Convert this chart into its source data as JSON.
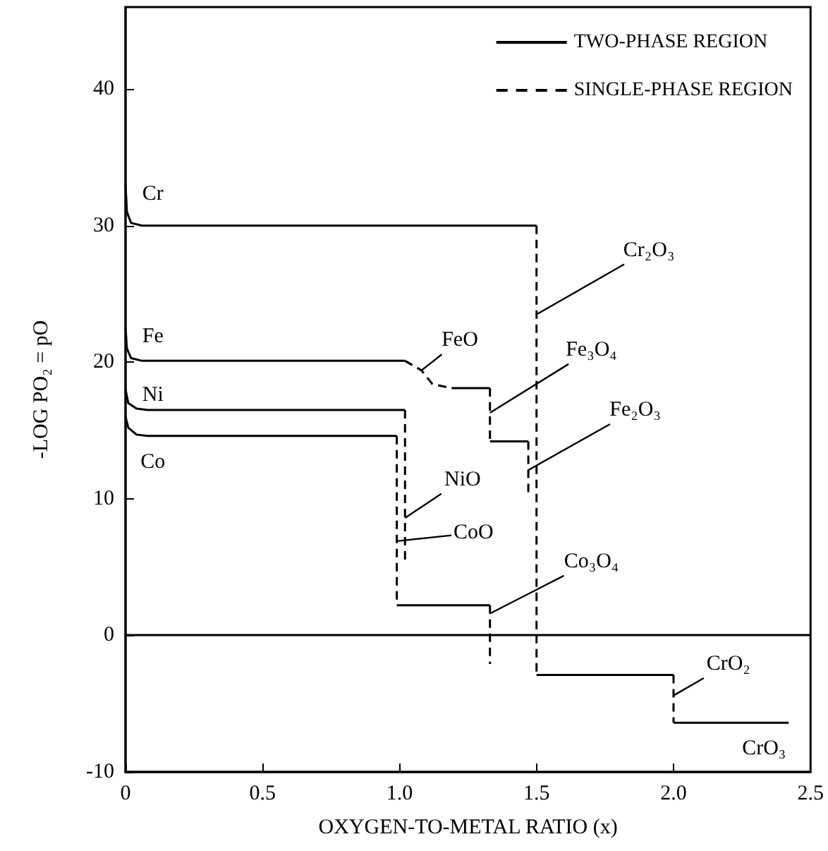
{
  "chart_data": {
    "type": "line",
    "xlabel": "OXYGEN-TO-METAL RATIO (x)",
    "ylabel": "-LOG PO₂ = pO",
    "xlim": [
      0,
      2.5
    ],
    "xticks": [
      0,
      0.5,
      {
        "value": 1,
        "label": "1.0"
      },
      1.5,
      {
        "value": 2,
        "label": "2.0"
      },
      2.5
    ],
    "ylim": [
      -10,
      46
    ],
    "yticks": [
      -10,
      0,
      10,
      20,
      30,
      40
    ],
    "grid": false,
    "legend": "top right",
    "marker": "none",
    "series": [
      {
        "name": "TWO-PHASE REGION",
        "color": "#000000",
        "line_style": "solid",
        "x": [
          0,
          0.005,
          0.02,
          0.06,
          1.5
        ],
        "values": [
          33,
          31,
          30.2,
          30,
          30
        ]
      },
      {
        "name": "SINGLE-PHASE REGION",
        "color": "#000000",
        "line_style": "dashed",
        "x": [
          1.5,
          1.5
        ],
        "values": [
          30,
          -2.9
        ]
      },
      {
        "color": "#000000",
        "line_style": "solid",
        "x": [
          1.5,
          2.0
        ],
        "values": [
          -2.9,
          -2.9
        ]
      },
      {
        "color": "#000000",
        "line_style": "dashed",
        "x": [
          2.0,
          2.0
        ],
        "values": [
          -2.9,
          -6.4
        ]
      },
      {
        "color": "#000000",
        "line_style": "solid",
        "x": [
          2.0,
          2.42
        ],
        "values": [
          -6.4,
          -6.4
        ]
      },
      {
        "color": "#000000",
        "line_style": "solid",
        "x": [
          0,
          0.005,
          0.02,
          0.06,
          1.02
        ],
        "values": [
          22.5,
          21,
          20.3,
          20.1,
          20.1
        ]
      },
      {
        "color": "#000000",
        "line_style": "dashed",
        "x": [
          1.02,
          1.08,
          1.12,
          1.19
        ],
        "values": [
          20.1,
          19.4,
          18.4,
          18.1
        ]
      },
      {
        "color": "#000000",
        "line_style": "solid",
        "x": [
          1.19,
          1.33
        ],
        "values": [
          18.1,
          18.1
        ]
      },
      {
        "color": "#000000",
        "line_style": "dashed",
        "x": [
          1.33,
          1.33
        ],
        "values": [
          18.1,
          14.2
        ]
      },
      {
        "color": "#000000",
        "line_style": "solid",
        "x": [
          1.33,
          1.47
        ],
        "values": [
          14.2,
          14.2
        ]
      },
      {
        "color": "#000000",
        "line_style": "dashed",
        "x": [
          1.47,
          1.47
        ],
        "values": [
          14.2,
          10.3
        ]
      },
      {
        "color": "#000000",
        "line_style": "solid",
        "x": [
          0,
          0.01,
          0.04,
          0.08,
          1.02
        ],
        "values": [
          18,
          17,
          16.6,
          16.5,
          16.5
        ]
      },
      {
        "color": "#000000",
        "line_style": "dashed",
        "x": [
          1.02,
          1.02
        ],
        "values": [
          16.5,
          5.4
        ]
      },
      {
        "color": "#000000",
        "line_style": "solid",
        "x": [
          0,
          0.01,
          0.04,
          0.08,
          0.99
        ],
        "values": [
          16,
          15.2,
          14.7,
          14.6,
          14.6
        ]
      },
      {
        "color": "#000000",
        "line_style": "dashed",
        "x": [
          0.99,
          0.99
        ],
        "values": [
          14.6,
          2.2
        ]
      },
      {
        "color": "#000000",
        "line_style": "solid",
        "x": [
          0.99,
          1.33
        ],
        "values": [
          2.2,
          2.2
        ]
      },
      {
        "color": "#000000",
        "line_style": "dashed",
        "x": [
          1.33,
          1.33
        ],
        "values": [
          2.2,
          -2.1
        ]
      }
    ],
    "ref_lines": [
      {
        "axis": "y",
        "value": 0,
        "color": "#000000",
        "line_style": "solid"
      }
    ],
    "annotations": [
      {
        "text": "Cr",
        "x": 0,
        "y": 30
      },
      {
        "text": "Fe",
        "x": 0,
        "y": 20.1
      },
      {
        "text": "Ni",
        "x": 0,
        "y": 16.5
      },
      {
        "text": "Co",
        "x": 0.08,
        "y": 14.6
      },
      {
        "text": "Cr₂O₃",
        "x": 1.5,
        "y": 23.5
      },
      {
        "text": "FeO",
        "x": 1.08,
        "y": 19.4
      },
      {
        "text": "Fe₃O₄",
        "x": 1.33,
        "y": 16.3
      },
      {
        "text": "Fe₂O₃",
        "x": 1.47,
        "y": 12.1
      },
      {
        "text": "NiO",
        "x": 1.02,
        "y": 8.6
      },
      {
        "text": "CoO",
        "x": 0.99,
        "y": 6.9
      },
      {
        "text": "Co₃O₄",
        "x": 1.33,
        "y": 1.6
      },
      {
        "text": "CrO₂",
        "x": 2.0,
        "y": -4.4
      },
      {
        "text": "CrO₃",
        "x": 2.42,
        "y": -6.4
      }
    ]
  }
}
